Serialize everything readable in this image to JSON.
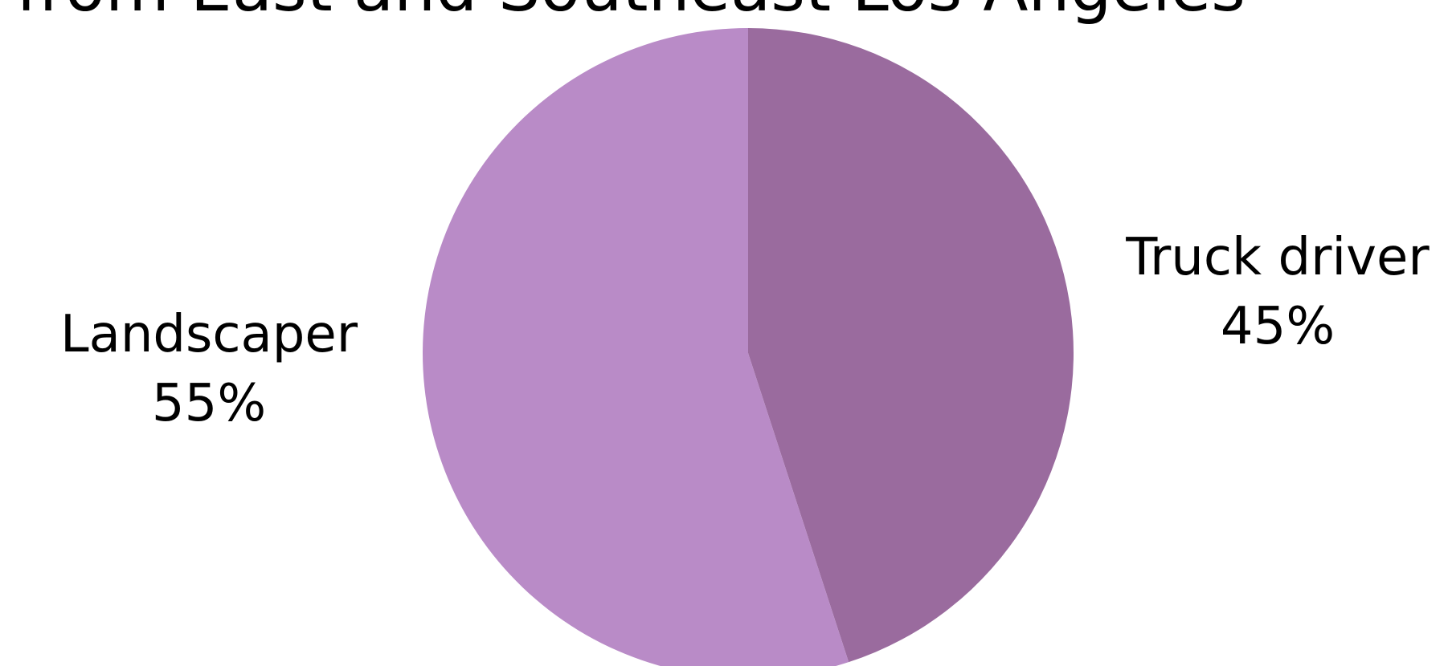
{
  "chart_data": {
    "type": "pie",
    "title": "from East and Southeast Los Angeles",
    "slices": [
      {
        "label": "Truck driver",
        "value": 45,
        "display": "45%",
        "color": "#9a6b9e"
      },
      {
        "label": "Landscaper",
        "value": 55,
        "display": "55%",
        "color": "#b98bc7"
      }
    ],
    "start_angle_deg": 0,
    "direction": "clockwise",
    "legend": "none"
  }
}
